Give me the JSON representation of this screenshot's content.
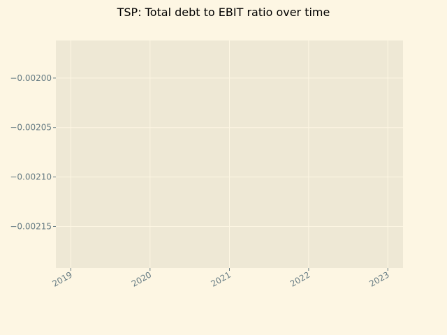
{
  "chart_data": {
    "type": "line",
    "title": "TSP: Total debt to EBIT ratio over time",
    "xlabel": "",
    "ylabel": "",
    "x_ticks": [
      "2019",
      "2020",
      "2021",
      "2022",
      "2023"
    ],
    "y_ticks": [
      "−0.00200",
      "−0.00205",
      "−0.00210",
      "−0.00215"
    ],
    "y_tick_values": [
      -0.002,
      -0.00205,
      -0.0021,
      -0.00215
    ],
    "xlim": [
      "2018-10-24",
      "2023-03-12"
    ],
    "ylim": [
      -0.002192,
      -0.001962
    ],
    "series": [],
    "grid": true,
    "legend": "none"
  },
  "colors": {
    "figure_background": "#fdf6e3",
    "plot_background": "#eee8d5",
    "grid": "#fdf6e3",
    "tick_label": "#657b83",
    "title": "#000000"
  }
}
